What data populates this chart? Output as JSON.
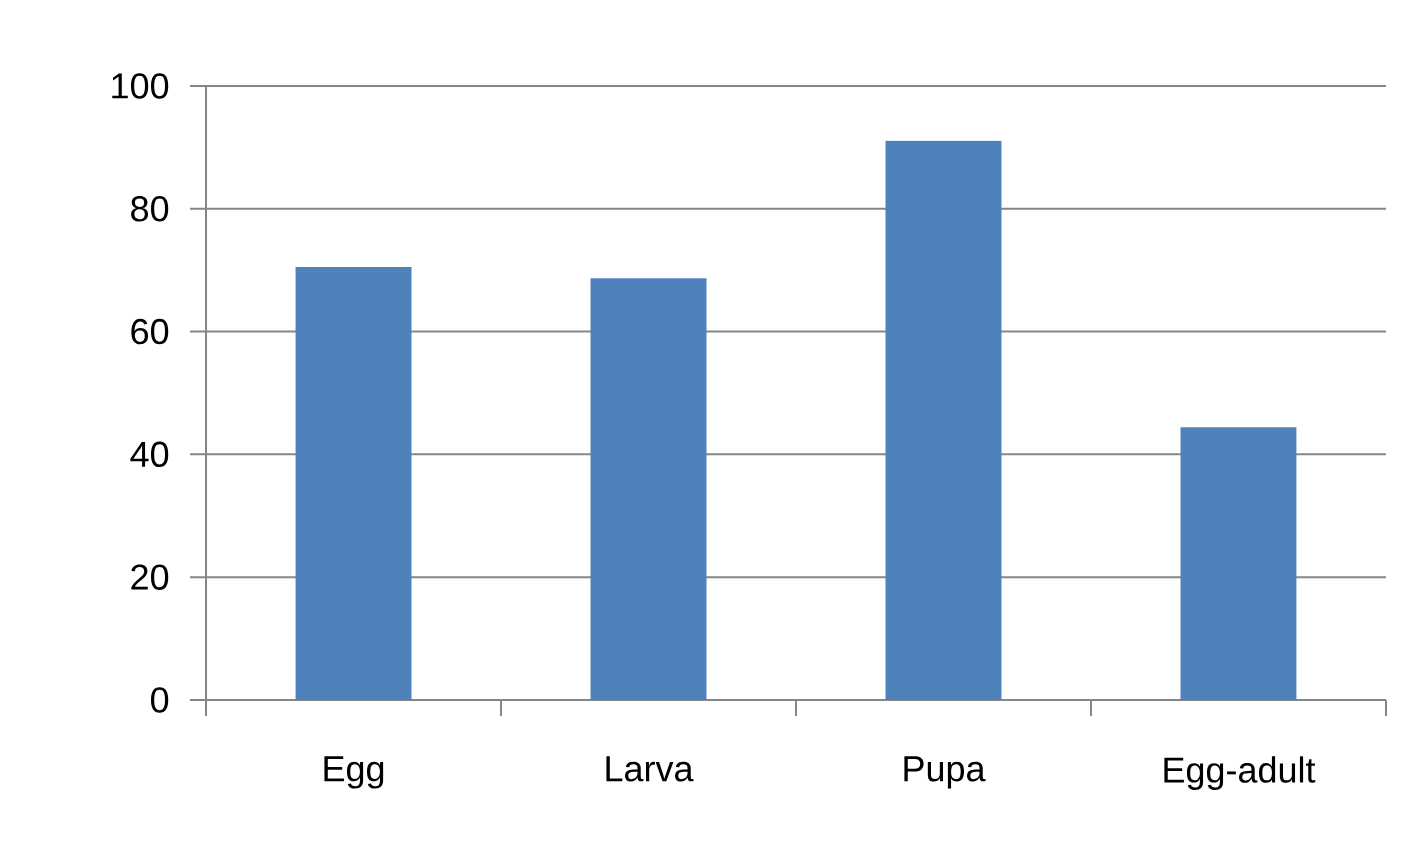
{
  "chart_data": {
    "type": "bar",
    "categories": [
      "Egg",
      "Larva",
      "Pupa",
      "Egg-adult"
    ],
    "values": [
      70.5,
      68.7,
      91.1,
      44.4
    ],
    "color": "#4f81bd",
    "ylim": [
      0,
      100
    ],
    "yticks": [
      0,
      20,
      40,
      60,
      80,
      100
    ],
    "grid": "y"
  }
}
